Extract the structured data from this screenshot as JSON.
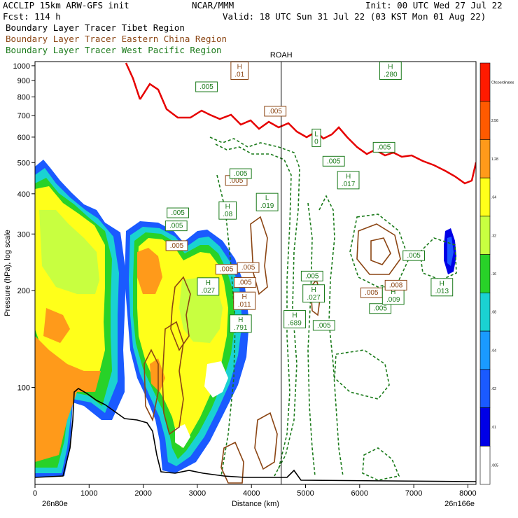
{
  "header": {
    "line1_left": "ACCLIP 15km ARW-GFS init",
    "line1_mid": "NCAR/MMM",
    "line1_right": "Init: 00 UTC Wed 27 Jul 22",
    "line2_left": "Fcst:  114 h",
    "line2_right": "Valid: 18 UTC Sun 31 Jul 22 (03 KST Mon 01 Aug 22)"
  },
  "legend": [
    {
      "label": "Boundary Layer Tracer  Tibet Region",
      "color": "#000000"
    },
    {
      "label": "Boundary Layer Tracer  Eastern China Region",
      "color": "#8b4513"
    },
    {
      "label": "Boundary Layer Tracer  West Pacific Region",
      "color": "#1a7a1a"
    }
  ],
  "chart_data": {
    "type": "heatmap",
    "xlabel": "Distance (km)",
    "ylabel": "Pressure (hPa), log scale",
    "x_ticks": [
      0,
      1000,
      2000,
      3000,
      4000,
      5000,
      6000,
      7000,
      8000
    ],
    "x_tick_labels": [
      "0",
      "1000",
      "2000",
      "3000",
      "4000",
      "5000",
      "6000",
      "7000",
      "8000"
    ],
    "xlim": [
      0,
      8150
    ],
    "y_ticks": [
      100,
      200,
      300,
      400,
      500,
      600,
      700,
      800,
      900,
      1000
    ],
    "y_tick_labels": [
      "100",
      "200",
      "300",
      "400",
      "500",
      "600",
      "700",
      "800",
      "900",
      "1000"
    ],
    "y_scale": "log",
    "ylim": [
      1030,
      50
    ],
    "left_endpoint": "26n80e",
    "right_endpoint": "26n166e",
    "station": {
      "name": "ROAH",
      "x": 4550
    },
    "colorbar": {
      "levels": [
        "Chcoordinates",
        "2.56",
        "1.28",
        ".64",
        ".32",
        ".16",
        ".08",
        ".04",
        ".02",
        ".01",
        ".005"
      ],
      "colors": [
        "#ff1a00",
        "#ff5a00",
        "#ff9a1a",
        "#ffff1a",
        "#c8ff40",
        "#28d228",
        "#1ad2d2",
        "#1a9aff",
        "#1a5aff",
        "#0000e6",
        "#ffffff"
      ]
    },
    "contour_labels": [
      {
        "text": "H\n.791",
        "x": 3800,
        "p": 158,
        "series": "tibet"
      },
      {
        "text": "H\n.011",
        "x": 3870,
        "p": 186,
        "series": "eastchina"
      },
      {
        "text": ".005",
        "x": 3880,
        "p": 212,
        "series": "eastchina"
      },
      {
        "text": ".005",
        "x": 3940,
        "p": 236,
        "series": "eastchina"
      },
      {
        "text": "H\n.689",
        "x": 4800,
        "p": 163,
        "series": "westpac"
      },
      {
        "text": ".005",
        "x": 5340,
        "p": 156,
        "series": "westpac"
      },
      {
        "text": "H\n.027",
        "x": 5150,
        "p": 196,
        "series": "westpac"
      },
      {
        "text": ".005",
        "x": 5120,
        "p": 222,
        "series": "westpac"
      },
      {
        "text": ".005",
        "x": 6380,
        "p": 176,
        "series": "westpac"
      },
      {
        "text": ".005",
        "x": 6220,
        "p": 197,
        "series": "eastchina"
      },
      {
        "text": "H\n.009",
        "x": 6620,
        "p": 193,
        "series": "westpac"
      },
      {
        "text": ".008",
        "x": 6670,
        "p": 208,
        "series": "eastchina"
      },
      {
        "text": "H\n.013",
        "x": 7520,
        "p": 205,
        "series": "westpac"
      },
      {
        "text": ".005",
        "x": 7000,
        "p": 257,
        "series": "westpac"
      },
      {
        "text": "H\n.027",
        "x": 3200,
        "p": 206,
        "series": "westpac"
      },
      {
        "text": ".005",
        "x": 3540,
        "p": 233,
        "series": "eastchina"
      },
      {
        "text": ".005",
        "x": 2620,
        "p": 276,
        "series": "eastchina"
      },
      {
        "text": ".005",
        "x": 2610,
        "p": 318,
        "series": "westpac"
      },
      {
        "text": ".005",
        "x": 2640,
        "p": 349,
        "series": "westpac"
      },
      {
        "text": "H\n.08",
        "x": 3560,
        "p": 355,
        "series": "westpac"
      },
      {
        "text": "L\n.019",
        "x": 4290,
        "p": 377,
        "series": "westpac"
      },
      {
        "text": ".005",
        "x": 3720,
        "p": 440,
        "series": "eastchina"
      },
      {
        "text": ".005",
        "x": 3800,
        "p": 462,
        "series": "westpac"
      },
      {
        "text": "H\n.017",
        "x": 5790,
        "p": 441,
        "series": "westpac"
      },
      {
        "text": ".005",
        "x": 5520,
        "p": 505,
        "series": "westpac"
      },
      {
        "text": ".005",
        "x": 6450,
        "p": 558,
        "series": "westpac"
      },
      {
        "text": "L\n0",
        "x": 5200,
        "p": 597,
        "series": "westpac"
      },
      {
        "text": ".005",
        "x": 4440,
        "p": 722,
        "series": "eastchina"
      },
      {
        "text": ".005",
        "x": 3170,
        "p": 860,
        "series": "westpac"
      },
      {
        "text": "H\n.01",
        "x": 3780,
        "p": 965,
        "series": "eastchina"
      },
      {
        "text": "H\n.280",
        "x": 6570,
        "p": 965,
        "series": "westpac"
      }
    ]
  }
}
